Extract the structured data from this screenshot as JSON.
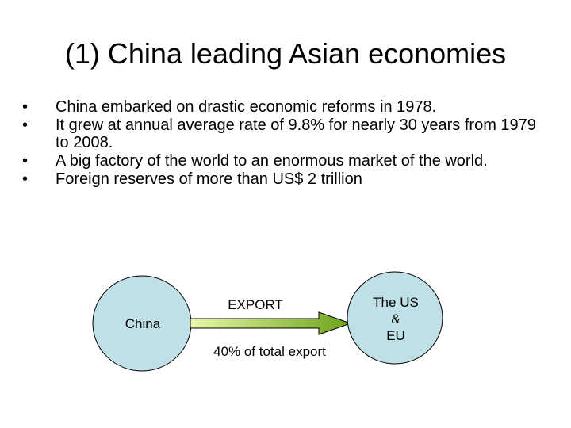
{
  "slide": {
    "title": "(1) China leading Asian economies",
    "bullets": [
      {
        "marker": "•",
        "text": "China embarked on drastic economic reforms in 1978."
      },
      {
        "marker": "•",
        "text": " It grew at annual average rate of 9.8% for nearly 30 years from 1979 to 2008."
      },
      {
        "marker": "•",
        "text": " A big factory of the world to an enormous market of the world."
      },
      {
        "marker": "•",
        "text": "Foreign reserves of more than US$ 2 trillion"
      }
    ]
  },
  "diagram": {
    "source_label": "China",
    "arrow_label": "EXPORT",
    "arrow_caption": "40% of total export",
    "target_label_lines": [
      "The US",
      "&",
      "EU"
    ],
    "colors": {
      "circle_fill": "#bfe0e6",
      "arrow_gradient_start": "#e6f9a8",
      "arrow_gradient_end": "#6ea21b",
      "outline": "#000000"
    }
  }
}
